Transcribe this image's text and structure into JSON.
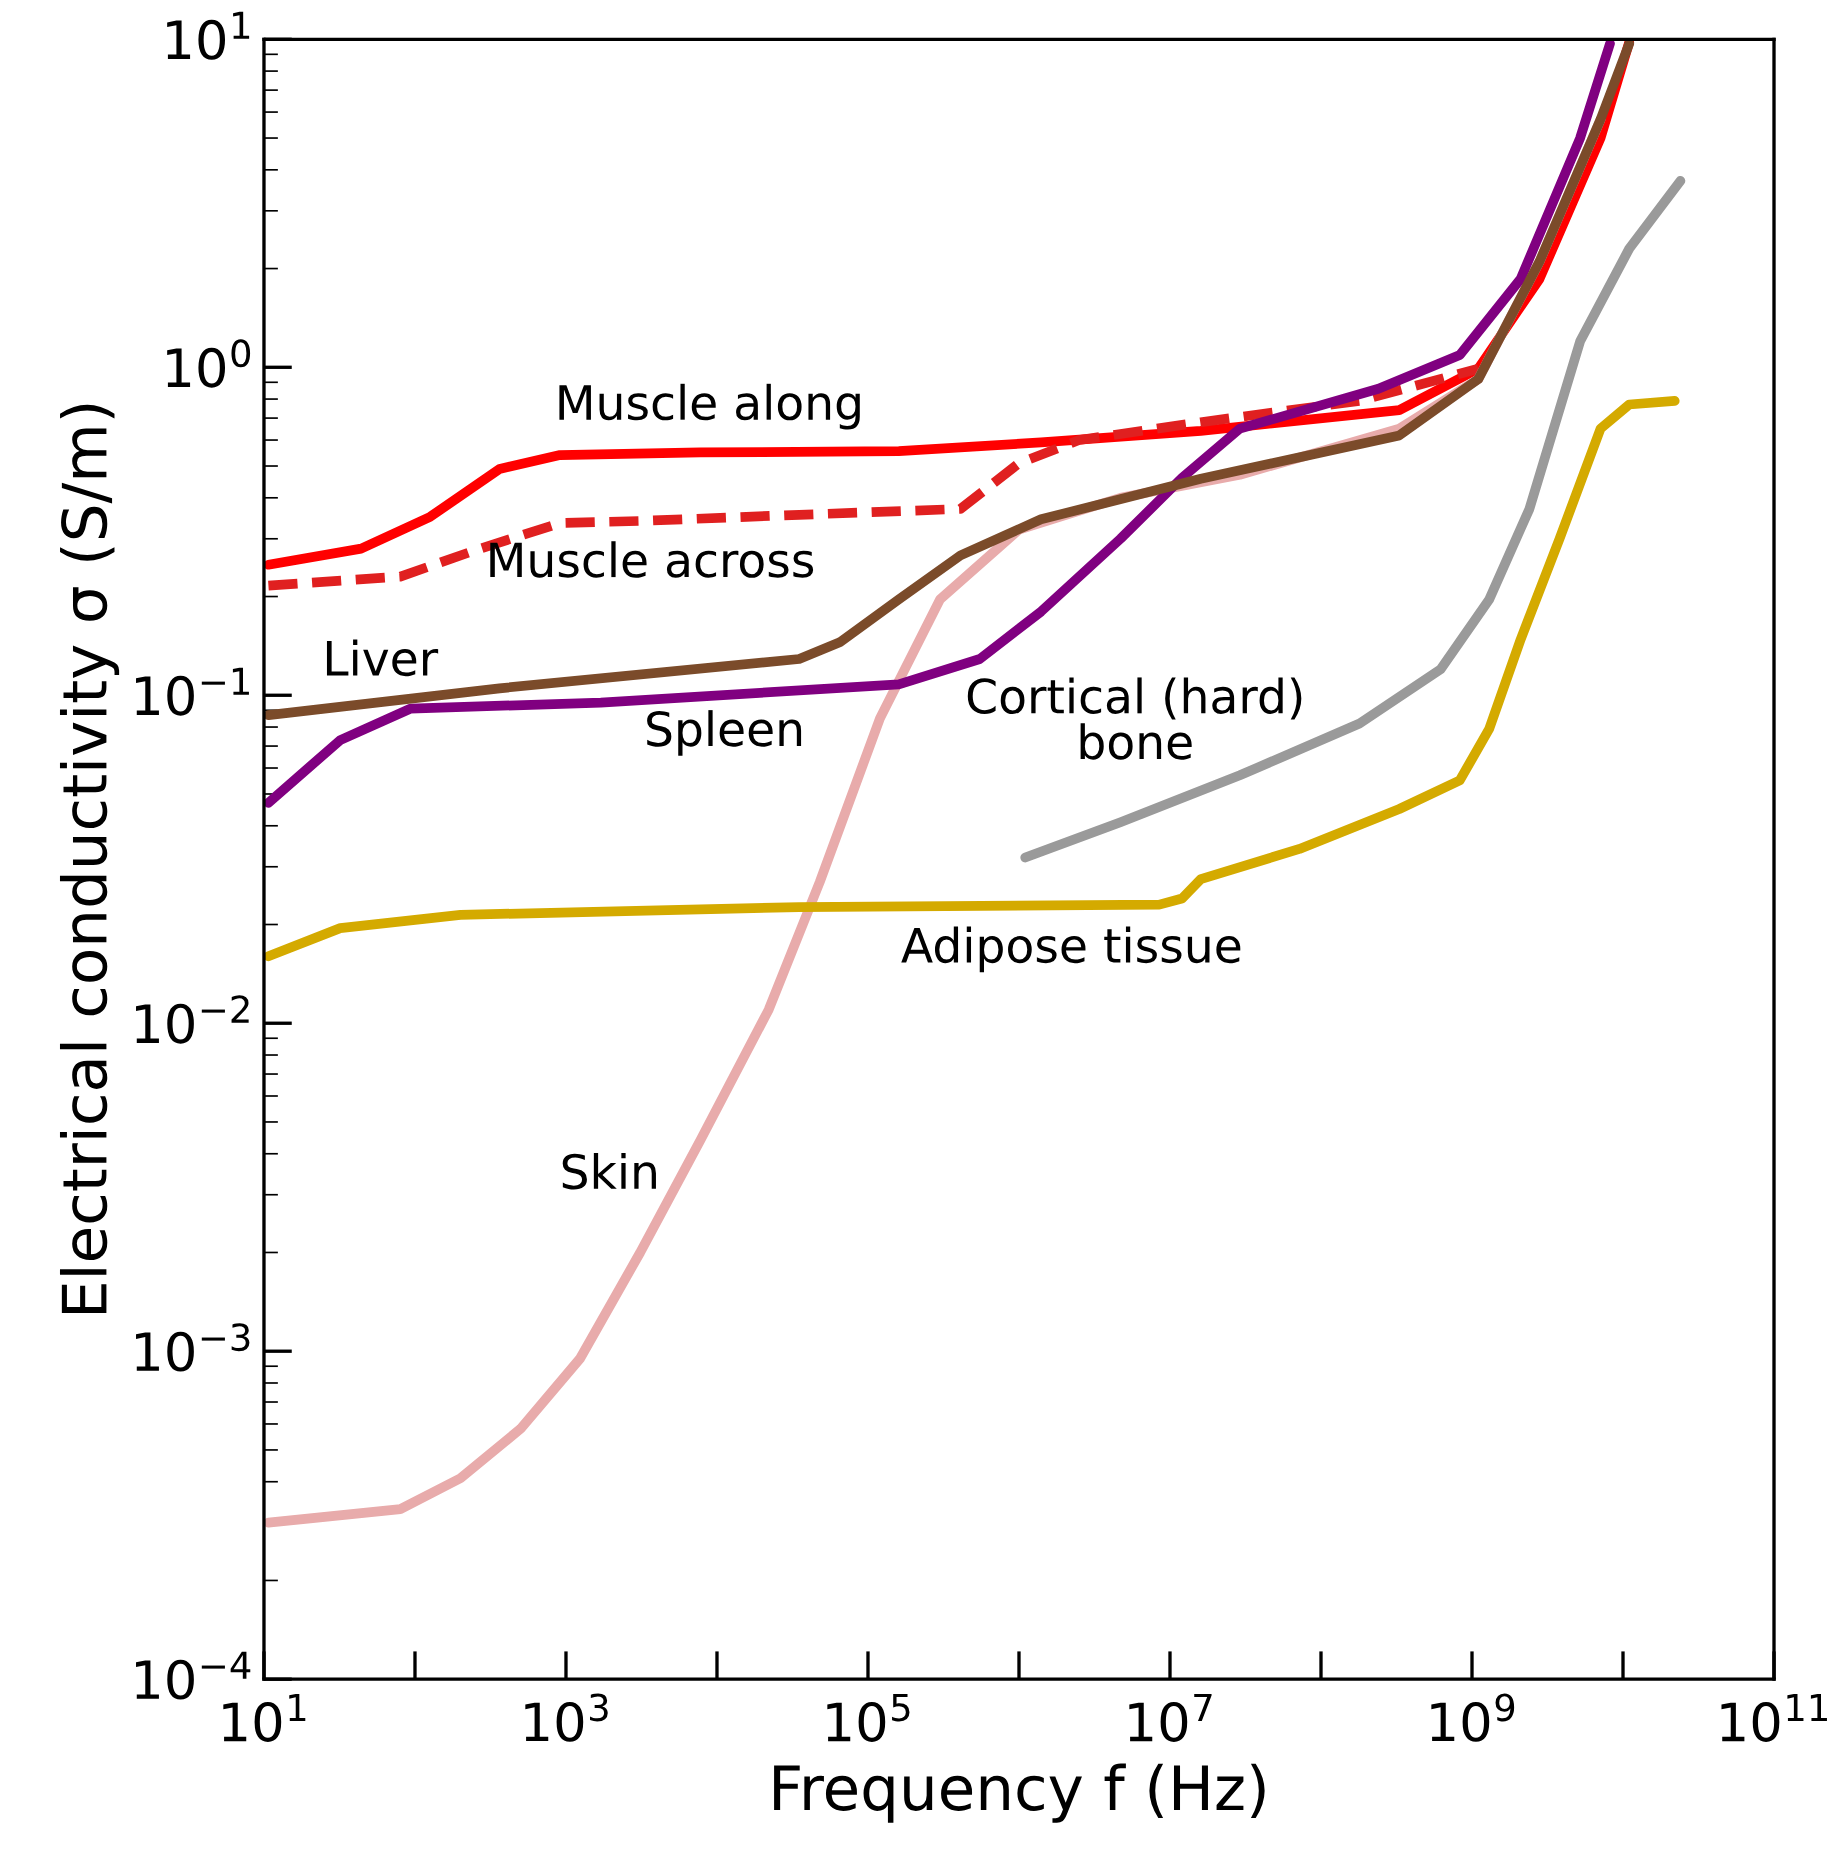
{
  "chart_data": {
    "type": "line",
    "xlabel": "Frequency f (Hz)",
    "ylabel": "Electrical conductivity σ (S/m)",
    "log": "xy",
    "grid": false,
    "legend": false,
    "xlim": [
      10,
      100000000000.0
    ],
    "ylim": [
      0.0001,
      10
    ],
    "xticks": [
      {
        "value": 10,
        "label": "10$^{1}$"
      },
      {
        "value": 100,
        "label": null
      },
      {
        "value": 1000,
        "label": "10$^{3}$"
      },
      {
        "value": 10000,
        "label": null
      },
      {
        "value": 100000,
        "label": "10$^{5}$"
      },
      {
        "value": 1000000,
        "label": null
      },
      {
        "value": 10000000,
        "label": "10$^{7}$"
      },
      {
        "value": 100000000,
        "label": null
      },
      {
        "value": 1000000000,
        "label": "10$^{9}$"
      },
      {
        "value": 10000000000,
        "label": null
      },
      {
        "value": 100000000000,
        "label": "10$^{11}$"
      }
    ],
    "yticks": [
      {
        "value": 0.0001,
        "label": "10$^{−4}$"
      },
      {
        "value": 0.001,
        "label": "10$^{−3}$"
      },
      {
        "value": 0.01,
        "label": "10$^{−2}$"
      },
      {
        "value": 0.1,
        "label": "10$^{−1}$"
      },
      {
        "value": 1,
        "label": "10$^{0}$"
      },
      {
        "value": 10,
        "label": "10$^{1}$"
      }
    ],
    "series": [
      {
        "name": "Muscle along",
        "color": "#ff0000",
        "line_style": "solid",
        "x": [
          10.7,
          44,
          126,
          363,
          912,
          7760,
          160000,
          1400000,
          16000000,
          330000000,
          1100000000,
          2800000000,
          7100000000,
          11000000000
        ],
        "values": [
          0.25,
          0.28,
          0.35,
          0.49,
          0.54,
          0.55,
          0.555,
          0.59,
          0.64,
          0.74,
          0.99,
          1.86,
          5.0,
          9.8
        ]
      },
      {
        "name": "Muscle across",
        "color": "#e02020",
        "line_style": "dashed",
        "x": [
          10.7,
          80,
          270,
          912,
          3100,
          35000,
          410000,
          1000000,
          2500000,
          16000000,
          180000000,
          1100000000
        ],
        "values": [
          0.216,
          0.23,
          0.28,
          0.335,
          0.34,
          0.355,
          0.37,
          0.51,
          0.6,
          0.68,
          0.79,
          0.99
        ]
      },
      {
        "name": "Skin",
        "color": "#e8abab",
        "line_style": "solid",
        "x": [
          10.7,
          80,
          200,
          500,
          1240,
          3100,
          7760,
          22000,
          48000,
          120000,
          300000,
          1000000,
          4700000,
          29000000,
          330000000,
          1100000000,
          2800000000,
          7100000000
        ],
        "values": [
          0.0003,
          0.00033,
          0.00041,
          0.00058,
          0.00095,
          0.002,
          0.0044,
          0.011,
          0.027,
          0.085,
          0.196,
          0.32,
          0.4,
          0.47,
          0.65,
          0.92,
          2.1,
          5.7
        ]
      },
      {
        "name": "Spleen",
        "color": "#800080",
        "line_style": "solid",
        "x": [
          10.7,
          32,
          93,
          1700,
          160000,
          550000,
          1400000,
          4700000,
          12000000,
          29000000,
          240000000,
          830000000,
          2100000000,
          5200000000,
          8200000000
        ],
        "values": [
          0.047,
          0.073,
          0.091,
          0.095,
          0.108,
          0.129,
          0.18,
          0.3,
          0.46,
          0.65,
          0.86,
          1.09,
          1.86,
          5.0,
          9.7
        ]
      },
      {
        "name": "Liver",
        "color": "#7b4b2a",
        "line_style": "solid",
        "x": [
          10.7,
          363,
          35000,
          65000,
          160000,
          410000,
          1400000,
          16000000,
          330000000,
          1100000000,
          2800000000,
          7100000000,
          11000000000
        ],
        "values": [
          0.087,
          0.105,
          0.129,
          0.145,
          0.196,
          0.267,
          0.344,
          0.457,
          0.62,
          0.92,
          2.1,
          5.7,
          9.7
        ]
      },
      {
        "name": "Cortical (hard)\nbone",
        "color": "#9a9a9a",
        "line_style": "solid",
        "x": [
          1100000,
          4700000,
          29000000,
          180000000,
          620000000,
          1300000000,
          2400000000,
          5200000000,
          11000000000,
          24000000000
        ],
        "values": [
          0.032,
          0.041,
          0.057,
          0.082,
          0.12,
          0.196,
          0.37,
          1.2,
          2.3,
          3.7
        ]
      },
      {
        "name": "Adipose tissue",
        "color": "#d4aa00",
        "line_style": "solid",
        "x": [
          10.7,
          32,
          200,
          35000,
          8500000,
          12000000,
          16000000,
          72000000,
          330000000,
          830000000,
          1300000000,
          2100000000,
          3800000000,
          7100000000,
          11000000000,
          22000000000
        ],
        "values": [
          0.016,
          0.0195,
          0.0214,
          0.0226,
          0.023,
          0.024,
          0.0275,
          0.034,
          0.045,
          0.055,
          0.079,
          0.148,
          0.3,
          0.65,
          0.77,
          0.79
        ]
      }
    ]
  }
}
